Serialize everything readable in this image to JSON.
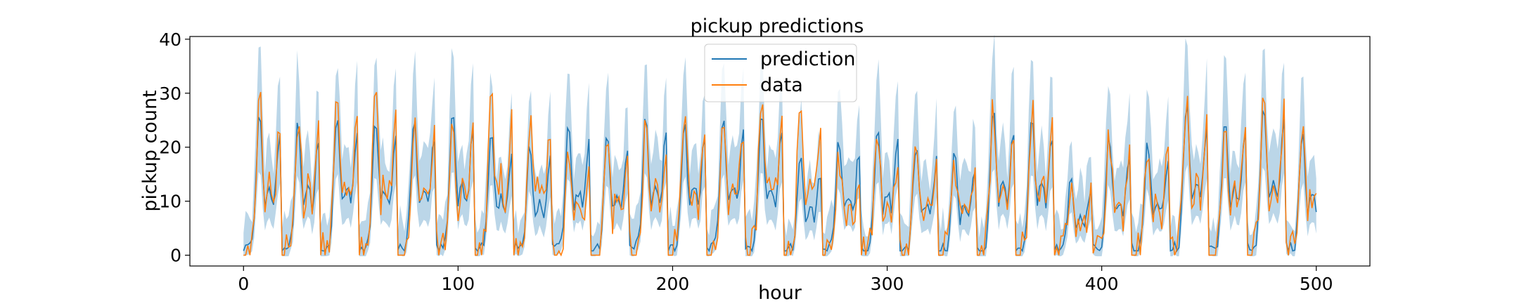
{
  "chart_data": {
    "type": "line",
    "title": "pickup predictions",
    "xlabel": "hour",
    "ylabel": "pickup count",
    "xlim": [
      -25,
      525
    ],
    "ylim": [
      -2,
      40.5
    ],
    "xticks": [
      0,
      100,
      200,
      300,
      400,
      500
    ],
    "yticks": [
      0,
      10,
      20,
      30,
      40
    ],
    "grid": false,
    "legend": "upper center",
    "daily_peaks_prediction": [
      26,
      25,
      26,
      26,
      25,
      26,
      22,
      21,
      24,
      22,
      26,
      25,
      26,
      27,
      18,
      22,
      24,
      20,
      19,
      27,
      26,
      14,
      22,
      21,
      28,
      26,
      28,
      23
    ],
    "daily_peaks_data": [
      29,
      26,
      27,
      30,
      25,
      27,
      29,
      25,
      18,
      20,
      24,
      26,
      27,
      31,
      27,
      19,
      22,
      20,
      17,
      27,
      27,
      14,
      22,
      21,
      29,
      25,
      31,
      23
    ],
    "series": [
      {
        "name": "prediction",
        "color": "#1f77b4"
      },
      {
        "name": "data",
        "color": "#ff7f0e"
      },
      {
        "name": "",
        "color": "#1f77b4",
        "opacity": 0.3,
        "kind": "band"
      }
    ]
  }
}
